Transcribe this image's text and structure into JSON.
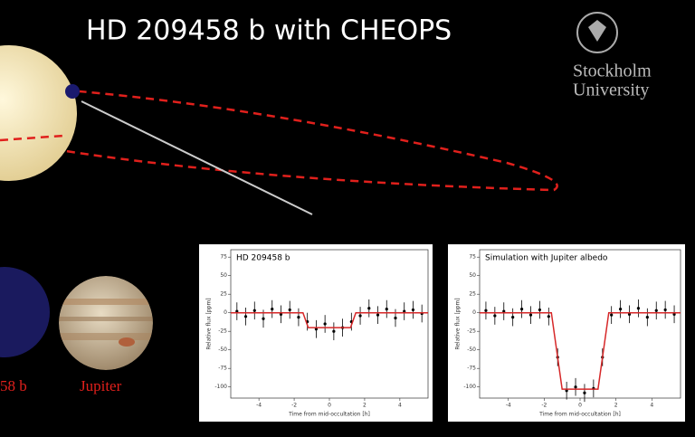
{
  "title": "HD 209458 b with CHEOPS",
  "logo": {
    "line1": "Stockholm",
    "line2": "University"
  },
  "planet_label": "58 b",
  "jupiter_label": "Jupiter",
  "chart_data": [
    {
      "type": "line",
      "title": "HD 209458 b",
      "x_label": "Time from mid-occultation [h]",
      "y_label": "Relative flux [ppm]",
      "xlim": [
        -5.6,
        5.6
      ],
      "ylim": [
        -115,
        85
      ],
      "xticks": [
        -4,
        -2,
        0,
        2,
        4
      ],
      "yticks": [
        75,
        50,
        25,
        0,
        -25,
        -50,
        -75,
        -100
      ],
      "series": [
        {
          "kind": "errorbar",
          "color": "#000000",
          "x": [
            -5.25,
            -4.75,
            -4.25,
            -3.75,
            -3.25,
            -2.75,
            -2.25,
            -1.75,
            -1.25,
            -0.75,
            -0.25,
            0.25,
            0.75,
            1.25,
            1.75,
            2.25,
            2.75,
            3.25,
            3.75,
            4.25,
            4.75,
            5.25
          ],
          "values": [
            2,
            -5,
            3,
            -8,
            5,
            -2,
            4,
            -6,
            -12,
            -22,
            -15,
            -25,
            -20,
            -12,
            -4,
            6,
            -3,
            5,
            -7,
            2,
            4,
            -1
          ],
          "errors": [
            12,
            12,
            12,
            12,
            12,
            12,
            12,
            12,
            12,
            12,
            12,
            12,
            12,
            12,
            12,
            12,
            12,
            12,
            12,
            12,
            12,
            12
          ]
        },
        {
          "kind": "line",
          "color": "#d62728",
          "x": [
            -5.6,
            -1.5,
            -1.2,
            1.2,
            1.5,
            5.6
          ],
          "values": [
            0,
            0,
            -20,
            -20,
            0,
            0
          ]
        }
      ]
    },
    {
      "type": "line",
      "title": "Simulation with Jupiter albedo",
      "x_label": "Time from mid-occultation [h]",
      "y_label": "Relative flux [ppm]",
      "xlim": [
        -5.6,
        5.6
      ],
      "ylim": [
        -115,
        85
      ],
      "xticks": [
        -4,
        -2,
        0,
        2,
        4
      ],
      "yticks": [
        75,
        50,
        25,
        0,
        -25,
        -50,
        -75,
        -100
      ],
      "series": [
        {
          "kind": "errorbar",
          "color": "#000000",
          "x": [
            -5.25,
            -4.75,
            -4.25,
            -3.75,
            -3.25,
            -2.75,
            -2.25,
            -1.75,
            -1.25,
            -0.75,
            -0.25,
            0.25,
            0.75,
            1.25,
            1.75,
            2.25,
            2.75,
            3.25,
            3.75,
            4.25,
            4.75,
            5.25
          ],
          "values": [
            3,
            -4,
            2,
            -6,
            5,
            -3,
            4,
            -5,
            -60,
            -105,
            -100,
            -108,
            -102,
            -60,
            -3,
            5,
            -2,
            6,
            -6,
            3,
            4,
            -2
          ],
          "errors": [
            12,
            12,
            12,
            12,
            12,
            12,
            12,
            12,
            12,
            12,
            12,
            12,
            12,
            12,
            12,
            12,
            12,
            12,
            12,
            12,
            12,
            12
          ]
        },
        {
          "kind": "line",
          "color": "#d62728",
          "x": [
            -5.6,
            -1.6,
            -1.0,
            1.0,
            1.6,
            5.6
          ],
          "values": [
            0,
            0,
            -103,
            -103,
            0,
            0
          ]
        }
      ]
    }
  ]
}
